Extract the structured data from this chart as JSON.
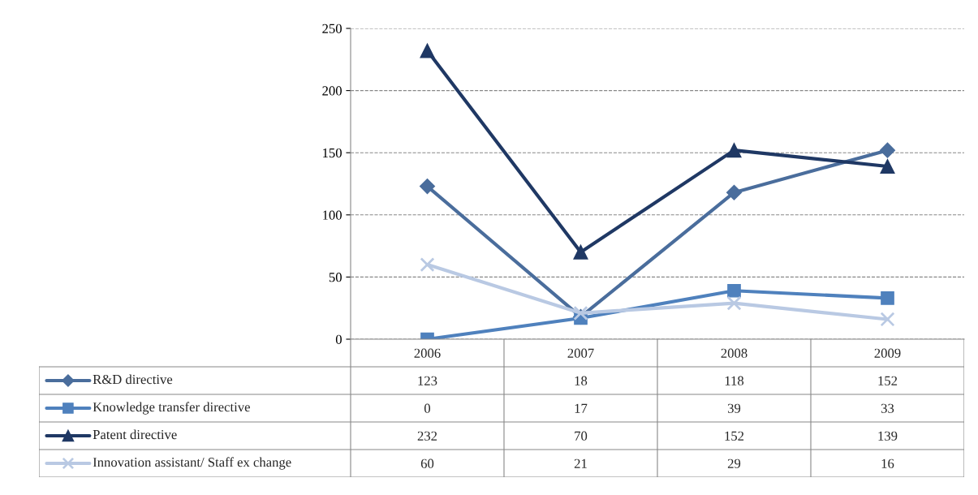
{
  "chart_data": {
    "type": "line",
    "categories": [
      "2006",
      "2007",
      "2008",
      "2009"
    ],
    "series": [
      {
        "name": "R&D directive",
        "color": "#4a6d9c",
        "marker": "diamond",
        "values": [
          123,
          18,
          118,
          152
        ]
      },
      {
        "name": "Knowledge transfer directive",
        "color": "#4f81bd",
        "marker": "square",
        "values": [
          0,
          17,
          39,
          33
        ]
      },
      {
        "name": "Patent directive",
        "color": "#1f3864",
        "marker": "triangle",
        "values": [
          232,
          70,
          152,
          139
        ]
      },
      {
        "name": "Innovation assistant/ Staff ex change",
        "color": "#b9c9e3",
        "marker": "cross",
        "values": [
          60,
          21,
          29,
          16
        ]
      }
    ],
    "ylim": [
      0,
      250
    ],
    "yticks": [
      0,
      50,
      100,
      150,
      200,
      250
    ],
    "grid": "y",
    "legend": "bottom",
    "data_labels": true,
    "line_style": "solid"
  }
}
